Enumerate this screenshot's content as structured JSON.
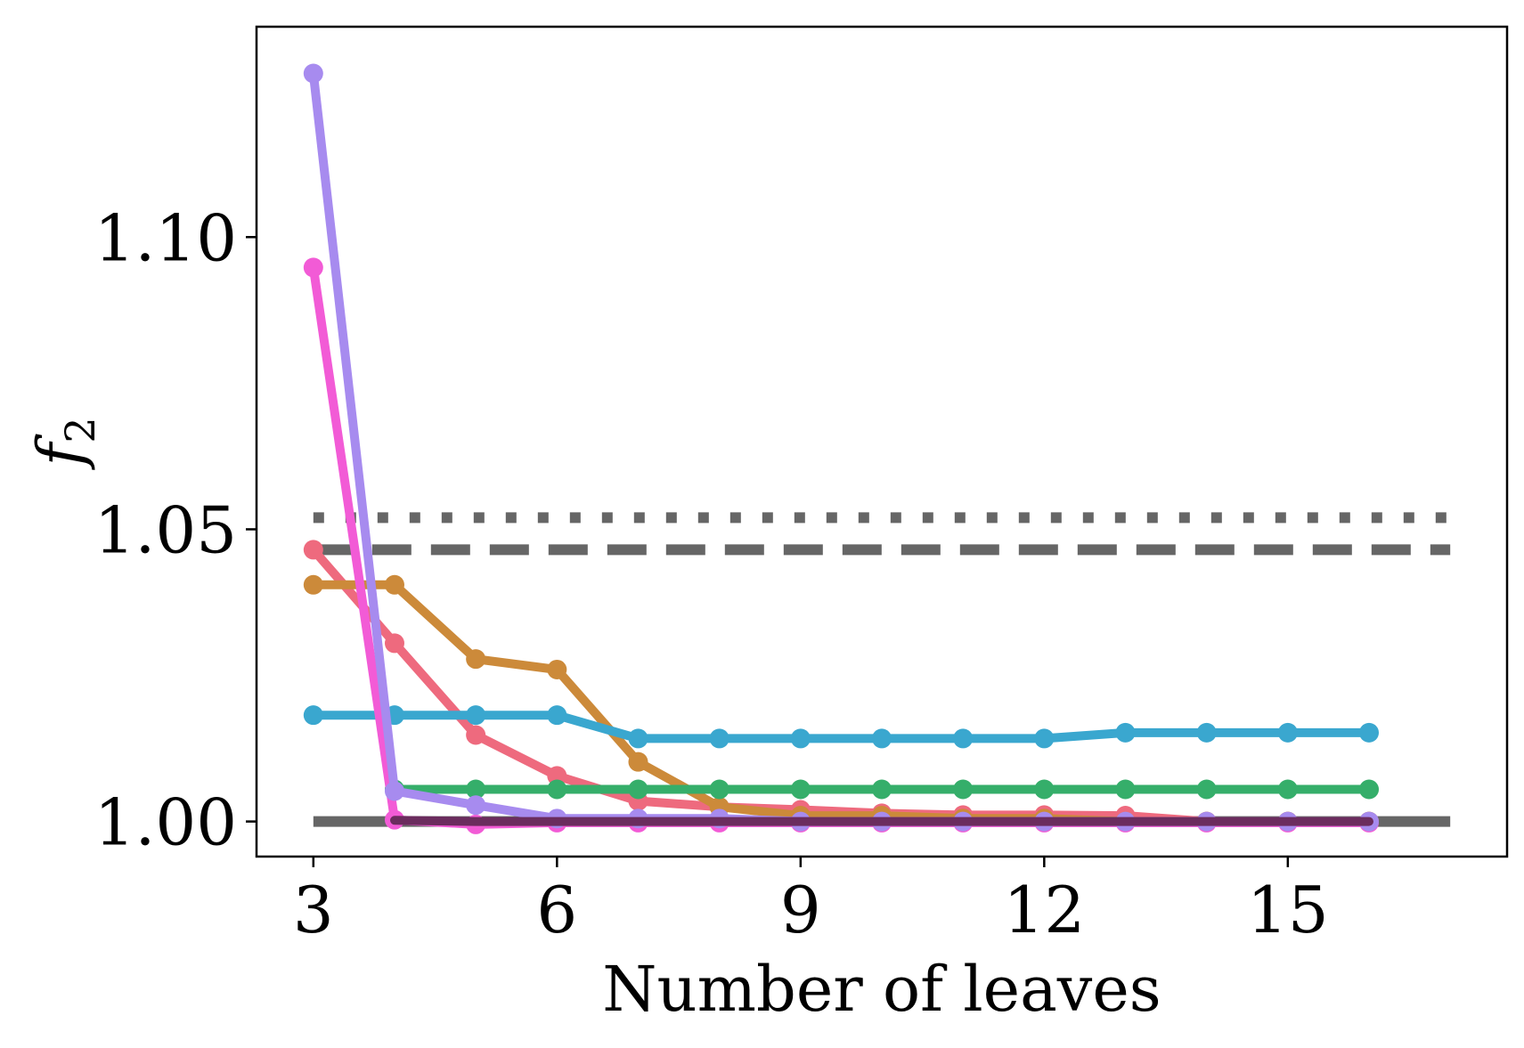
{
  "chart_data": {
    "type": "line",
    "xlabel": "Number of leaves",
    "ylabel": "f",
    "ylabel_subscript": "2",
    "xlim": [
      2.3,
      17.7
    ],
    "ylim": [
      0.994,
      1.136
    ],
    "xticks": [
      3,
      6,
      9,
      12,
      15
    ],
    "xtick_labels": [
      "3",
      "6",
      "9",
      "12",
      "15"
    ],
    "yticks": [
      1.0,
      1.05,
      1.1
    ],
    "ytick_labels": [
      "1.00",
      "1.05",
      "1.10"
    ],
    "grid": false,
    "legend": "none",
    "reference_lines": [
      {
        "style": "dotted",
        "y": 1.052,
        "x": [
          3,
          17
        ],
        "color": "#666666"
      },
      {
        "style": "dashed",
        "y": 1.0465,
        "x": [
          3,
          17
        ],
        "color": "#666666"
      },
      {
        "style": "solid",
        "y": 1.0,
        "x": [
          3,
          17
        ],
        "color": "#666666"
      }
    ],
    "series": [
      {
        "color": "#ee6a7e",
        "x": [
          3,
          4,
          5,
          6,
          7,
          8,
          9,
          10,
          11,
          12,
          13,
          14,
          15,
          16
        ],
        "y": [
          1.0465,
          1.0305,
          1.0148,
          1.0078,
          1.0035,
          1.0025,
          1.002,
          1.0014,
          1.0011,
          1.0011,
          1.001,
          1.0,
          1.0,
          1.0
        ]
      },
      {
        "color": "#cc8a3a",
        "x": [
          3,
          4,
          5,
          6,
          7,
          8,
          9,
          10,
          11,
          12,
          13,
          14,
          15,
          16
        ],
        "y": [
          1.0405,
          1.0405,
          1.0278,
          1.026,
          1.0102,
          1.0025,
          1.001,
          1.001,
          1.0005,
          1.0005,
          1.0,
          1.0,
          1.0,
          1.0
        ]
      },
      {
        "color": "#3aa7cf",
        "x": [
          3,
          4,
          5,
          6,
          7,
          8,
          9,
          10,
          11,
          12,
          13,
          14,
          15,
          16
        ],
        "y": [
          1.0182,
          1.0182,
          1.0182,
          1.0182,
          1.0142,
          1.0142,
          1.0142,
          1.0142,
          1.0142,
          1.0142,
          1.0152,
          1.0152,
          1.0152,
          1.0152
        ]
      },
      {
        "color": "#35ae6a",
        "x": [
          4,
          5,
          6,
          7,
          8,
          9,
          10,
          11,
          12,
          13,
          14,
          15,
          16
        ],
        "y": [
          1.0055,
          1.0055,
          1.0055,
          1.0055,
          1.0055,
          1.0055,
          1.0055,
          1.0055,
          1.0055,
          1.0055,
          1.0055,
          1.0055,
          1.0055
        ]
      },
      {
        "color": "#f25bd6",
        "x": [
          3,
          4,
          5,
          6,
          7,
          8,
          9,
          10,
          11,
          12,
          13,
          14,
          15,
          16
        ],
        "y": [
          1.0948,
          1.0003,
          0.9995,
          0.9998,
          0.9998,
          0.9998,
          0.9998,
          0.9998,
          0.9998,
          0.9998,
          0.9998,
          0.9998,
          0.9998,
          0.9998
        ]
      },
      {
        "color": "#a78bef",
        "x": [
          3,
          4,
          5,
          6,
          7,
          8,
          9,
          10,
          11,
          12,
          13,
          14,
          15,
          16
        ],
        "y": [
          1.128,
          1.0052,
          1.0028,
          1.0005,
          1.0005,
          1.0005,
          1.0,
          1.0,
          1.0,
          1.0,
          1.0,
          1.0,
          1.0,
          1.0
        ]
      },
      {
        "color": "#6b2c5e",
        "markers": false,
        "x": [
          4,
          5,
          6,
          7,
          8,
          9,
          10,
          11,
          12,
          13,
          14,
          15,
          16
        ],
        "y": [
          1.0002,
          1.0,
          1.0,
          1.0,
          1.0,
          1.0,
          1.0,
          1.0,
          1.0,
          1.0,
          1.0,
          1.0,
          1.0
        ]
      }
    ]
  }
}
